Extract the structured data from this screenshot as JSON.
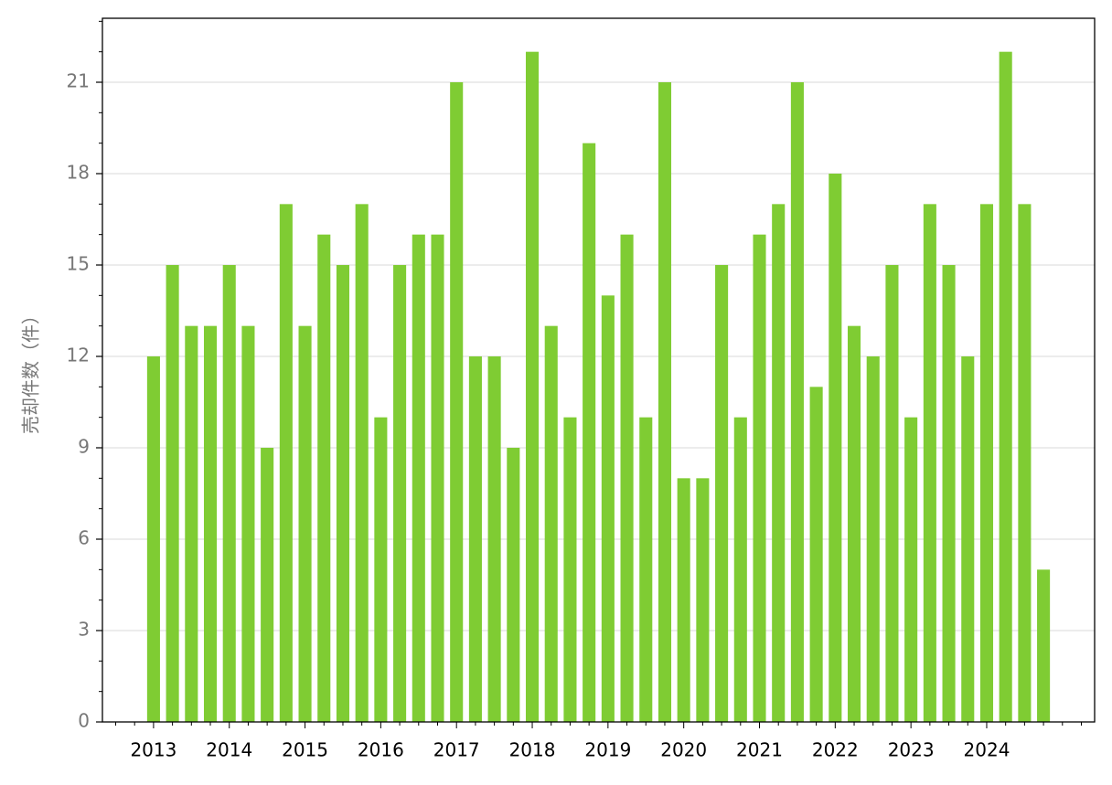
{
  "chart_data": {
    "type": "bar",
    "y_label": "売却件数（件）",
    "categories": [
      "2013",
      null,
      null,
      null,
      "2014",
      null,
      null,
      null,
      "2015",
      null,
      null,
      null,
      "2016",
      null,
      null,
      null,
      "2017",
      null,
      null,
      null,
      "2018",
      null,
      null,
      null,
      "2019",
      null,
      null,
      null,
      "2020",
      null,
      null,
      null,
      "2021",
      null,
      null,
      null,
      "2022",
      null,
      null,
      null,
      "2023",
      null,
      null,
      null,
      "2024",
      null,
      null,
      null
    ],
    "values": [
      12,
      15,
      13,
      13,
      15,
      13,
      9,
      17,
      13,
      16,
      15,
      17,
      10,
      15,
      16,
      16,
      21,
      12,
      12,
      9,
      22,
      13,
      10,
      19,
      14,
      16,
      10,
      21,
      8,
      8,
      15,
      10,
      16,
      17,
      21,
      11,
      18,
      13,
      12,
      15,
      10,
      17,
      15,
      12,
      17,
      22,
      17,
      5
    ],
    "color": "#7fcc33",
    "ylim": [
      0,
      23.1
    ],
    "yticks": [
      0,
      3,
      6,
      9,
      12,
      15,
      18,
      21
    ],
    "grid": true
  }
}
